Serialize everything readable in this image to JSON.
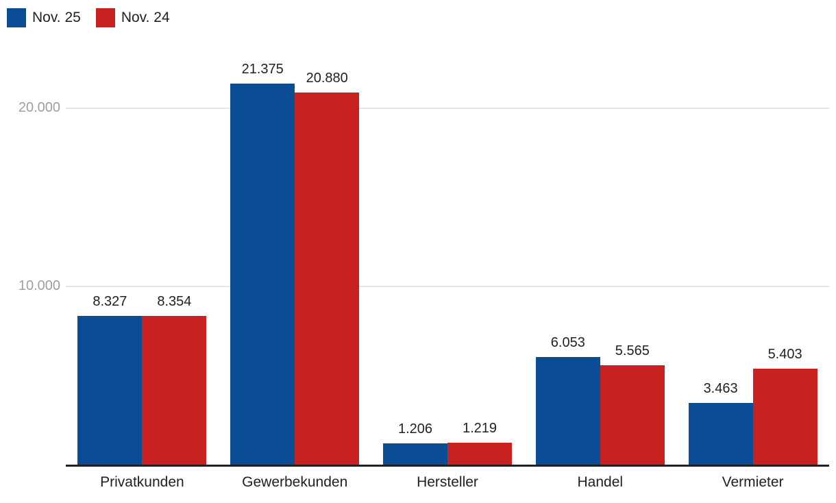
{
  "legend": {
    "items": [
      {
        "label": "Nov. 25",
        "color": "#0b4d94",
        "icon": "legend-swatch-blue"
      },
      {
        "label": "Nov. 24",
        "color": "#c92120",
        "icon": "legend-swatch-red"
      }
    ]
  },
  "axis": {
    "y_ticks": [
      {
        "label": "10.000",
        "value": 10000
      },
      {
        "label": "20.000",
        "value": 20000
      }
    ]
  },
  "chart_data": {
    "type": "bar",
    "title": "",
    "xlabel": "",
    "ylabel": "",
    "categories": [
      "Privatkunden",
      "Gewerbekunden",
      "Hersteller",
      "Handel",
      "Vermieter"
    ],
    "series": [
      {
        "name": "Nov. 25",
        "color": "#0b4d94",
        "values": [
          8327,
          21375,
          1206,
          6053,
          3463
        ],
        "labels": [
          "8.327",
          "21.375",
          "1.206",
          "6.053",
          "3.463"
        ]
      },
      {
        "name": "Nov. 24",
        "color": "#c92120",
        "values": [
          8354,
          20880,
          1219,
          5565,
          5403
        ],
        "labels": [
          "8.354",
          "20.880",
          "1.219",
          "5.565",
          "5.403"
        ]
      }
    ],
    "ylim": [
      0,
      26000
    ],
    "y_gridlines": [
      10000,
      20000
    ],
    "grid": true,
    "legend_position": "top-left",
    "number_format": "de-DE (dot thousands separator)"
  },
  "colors": {
    "series_blue": "#0b4d94",
    "series_red": "#c92120",
    "text_dark": "#212121",
    "tick_gray": "#9e9e9e",
    "gridline": "#e6e6e6",
    "axis_line": "#212121",
    "background": "#ffffff"
  }
}
